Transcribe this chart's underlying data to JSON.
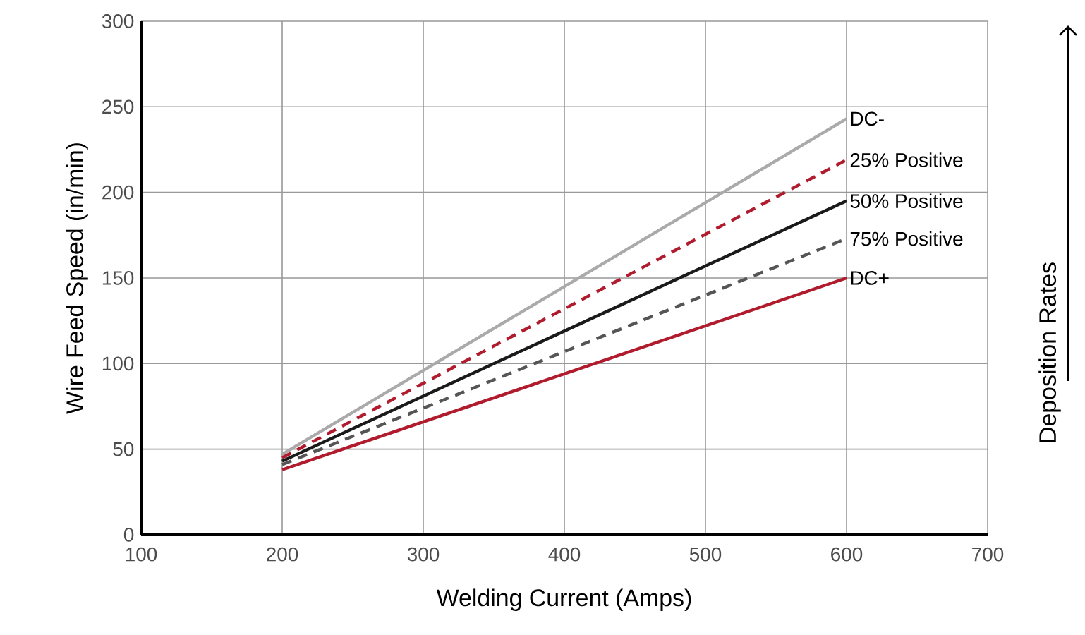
{
  "chart_data": {
    "type": "line",
    "xlabel": "Welding Current (Amps)",
    "ylabel": "Wire Feed Speed (in/min)",
    "xlim": [
      100,
      700
    ],
    "ylim": [
      0,
      300
    ],
    "xticks": [
      100,
      200,
      300,
      400,
      500,
      600,
      700
    ],
    "yticks": [
      0,
      50,
      100,
      150,
      200,
      250,
      300
    ],
    "grid": true,
    "legend": false,
    "marker": "none",
    "annotations": [
      "Deposition Rates"
    ],
    "x": [
      200,
      600
    ],
    "series": [
      {
        "name": "DC-",
        "color": "#aaaaaa",
        "line_style": "solid",
        "values": [
          47,
          243
        ]
      },
      {
        "name": "25% Positive",
        "color": "#b01c2e",
        "line_style": "dashed",
        "values": [
          45,
          219
        ]
      },
      {
        "name": "50% Positive",
        "color": "#1a1a1a",
        "line_style": "solid",
        "values": [
          43,
          195
        ]
      },
      {
        "name": "75% Positive",
        "color": "#555555",
        "line_style": "dashed",
        "values": [
          41,
          173
        ]
      },
      {
        "name": "DC+",
        "color": "#b01c2e",
        "line_style": "solid",
        "values": [
          38,
          150
        ]
      }
    ]
  }
}
